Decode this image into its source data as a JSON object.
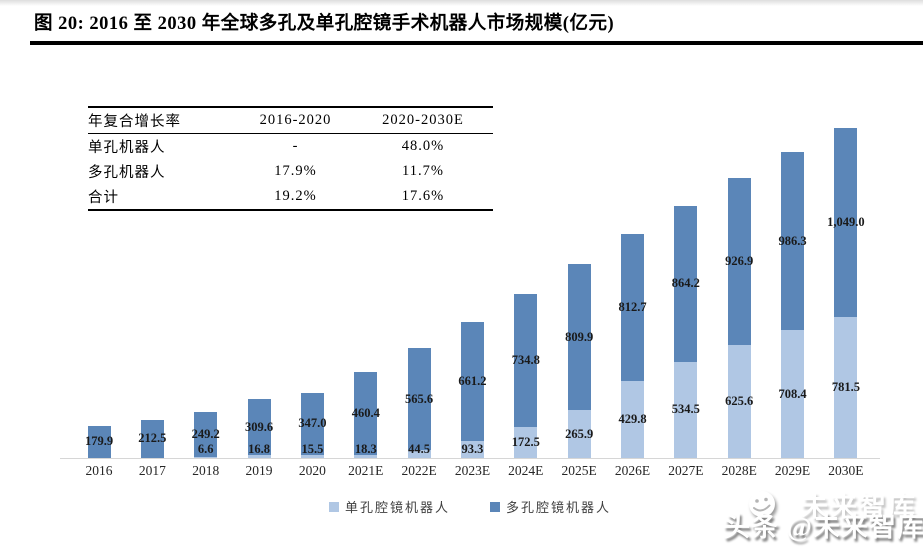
{
  "figure_title": "图 20: 2016 至 2030 年全球多孔及单孔腔镜手术机器人市场规模(亿元)",
  "growth_table": {
    "headers": [
      "年复合增长率",
      "2016-2020",
      "2020-2030E"
    ],
    "rows": [
      {
        "label": "单孔机器人",
        "v1": "-",
        "v2": "48.0%"
      },
      {
        "label": "多孔机器人",
        "v1": "17.9%",
        "v2": "11.7%"
      },
      {
        "label": "合计",
        "v1": "19.2%",
        "v2": "17.6%"
      }
    ]
  },
  "chart_data": {
    "type": "bar",
    "stacked": true,
    "title": "2016 至 2030 年全球多孔及单孔腔镜手术机器人市场规模(亿元)",
    "xlabel": "",
    "ylabel": "",
    "ylim": [
      0,
      1900
    ],
    "grid": false,
    "legend_position": "bottom",
    "value_labels": "inside-center, format #,##0.0",
    "categories": [
      "2016",
      "2017",
      "2018",
      "2019",
      "2020",
      "2021E",
      "2022E",
      "2023E",
      "2024E",
      "2025E",
      "2026E",
      "2027E",
      "2028E",
      "2029E",
      "2030E"
    ],
    "series": [
      {
        "name": "单孔腔镜机器人",
        "color": "#b0c7e4",
        "values": [
          null,
          null,
          6.6,
          16.8,
          15.5,
          18.3,
          44.5,
          93.3,
          172.5,
          265.9,
          429.8,
          534.5,
          625.6,
          708.4,
          781.5
        ]
      },
      {
        "name": "多孔腔镜机器人",
        "color": "#5b86b8",
        "values": [
          179.9,
          212.5,
          249.2,
          309.6,
          347.0,
          460.4,
          565.6,
          661.2,
          734.8,
          809.9,
          812.7,
          864.2,
          926.9,
          986.3,
          1049.0
        ]
      }
    ]
  },
  "axis": {
    "line_color": "#d6d6d6"
  },
  "watermark": {
    "front_text": "头条 @未来智库",
    "back_text": "未来智库",
    "icon": "smiley-face-icon"
  }
}
